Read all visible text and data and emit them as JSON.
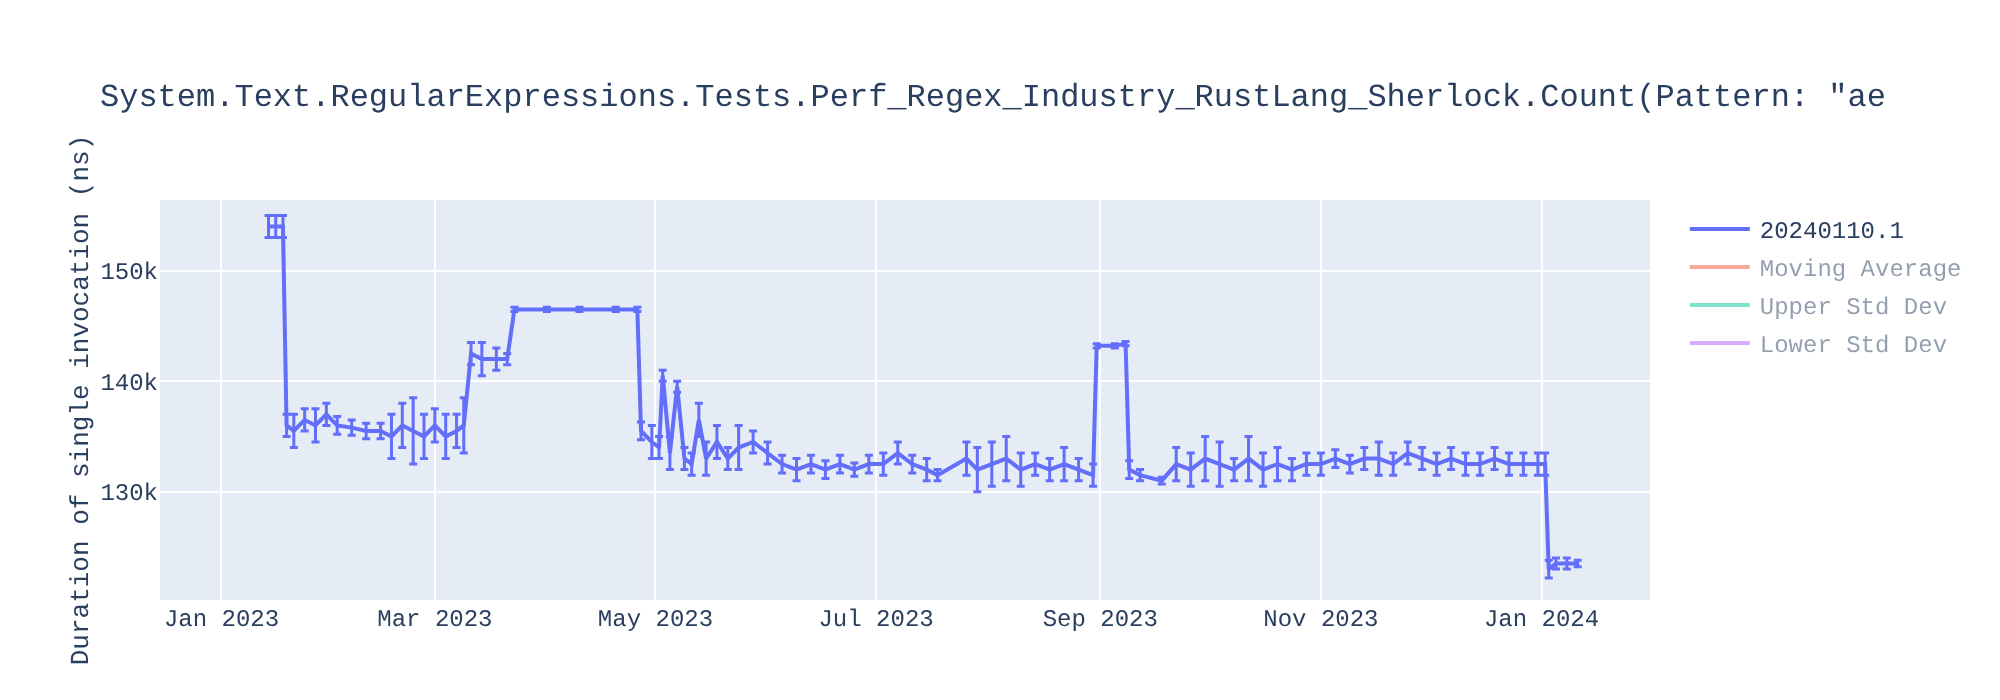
{
  "chart_data": {
    "type": "line",
    "title": "System.Text.RegularExpressions.Tests.Perf_Regex_Industry_RustLang_Sherlock.Count(Pattern: \"ae",
    "ylabel": "Duration of single invocation (ns)",
    "xlim": [
      "2022-12-15",
      "2024-01-31"
    ],
    "xticks": [
      {
        "value": "2023-01-01",
        "label": "Jan 2023"
      },
      {
        "value": "2023-03-01",
        "label": "Mar 2023"
      },
      {
        "value": "2023-05-01",
        "label": "May 2023"
      },
      {
        "value": "2023-07-01",
        "label": "Jul 2023"
      },
      {
        "value": "2023-09-01",
        "label": "Sep 2023"
      },
      {
        "value": "2023-11-01",
        "label": "Nov 2023"
      },
      {
        "value": "2024-01-01",
        "label": "Jan 2024"
      }
    ],
    "ylim": [
      120200,
      156400
    ],
    "yticks": [
      {
        "value": 130000,
        "label": "130k"
      },
      {
        "value": 140000,
        "label": "140k"
      },
      {
        "value": 150000,
        "label": "150k"
      }
    ],
    "grid": true,
    "legend": "top right",
    "line_style": "solid",
    "series": [
      {
        "name": "20240110.1",
        "color": "#636efa",
        "x": [
          "2023-01-14",
          "2023-01-16",
          "2023-01-18",
          "2023-01-19",
          "2023-01-21",
          "2023-01-24",
          "2023-01-27",
          "2023-01-30",
          "2023-02-02",
          "2023-02-06",
          "2023-02-10",
          "2023-02-14",
          "2023-02-17",
          "2023-02-20",
          "2023-02-23",
          "2023-02-26",
          "2023-03-01",
          "2023-03-04",
          "2023-03-07",
          "2023-03-09",
          "2023-03-11",
          "2023-03-14",
          "2023-03-18",
          "2023-03-21",
          "2023-03-23",
          "2023-04-01",
          "2023-04-10",
          "2023-04-20",
          "2023-04-26",
          "2023-04-27",
          "2023-04-30",
          "2023-05-02",
          "2023-05-03",
          "2023-05-05",
          "2023-05-07",
          "2023-05-09",
          "2023-05-11",
          "2023-05-13",
          "2023-05-15",
          "2023-05-18",
          "2023-05-21",
          "2023-05-24",
          "2023-05-28",
          "2023-06-01",
          "2023-06-05",
          "2023-06-09",
          "2023-06-13",
          "2023-06-17",
          "2023-06-21",
          "2023-06-25",
          "2023-06-29",
          "2023-07-03",
          "2023-07-07",
          "2023-07-11",
          "2023-07-15",
          "2023-07-18",
          "2023-07-26",
          "2023-07-29",
          "2023-08-02",
          "2023-08-06",
          "2023-08-10",
          "2023-08-14",
          "2023-08-18",
          "2023-08-22",
          "2023-08-26",
          "2023-08-30",
          "2023-08-31",
          "2023-09-05",
          "2023-09-08",
          "2023-09-09",
          "2023-09-12",
          "2023-09-18",
          "2023-09-22",
          "2023-09-26",
          "2023-09-30",
          "2023-10-04",
          "2023-10-08",
          "2023-10-12",
          "2023-10-16",
          "2023-10-20",
          "2023-10-24",
          "2023-10-28",
          "2023-11-01",
          "2023-11-05",
          "2023-11-09",
          "2023-11-13",
          "2023-11-17",
          "2023-11-21",
          "2023-11-25",
          "2023-11-29",
          "2023-12-03",
          "2023-12-07",
          "2023-12-11",
          "2023-12-15",
          "2023-12-19",
          "2023-12-23",
          "2023-12-27",
          "2023-12-31",
          "2024-01-02",
          "2024-01-03",
          "2024-01-05",
          "2024-01-08",
          "2024-01-11"
        ],
        "values": [
          154000,
          154000,
          154000,
          136000,
          135500,
          136500,
          136000,
          137000,
          136000,
          135800,
          135500,
          135500,
          135000,
          136000,
          135500,
          135000,
          136000,
          135000,
          135500,
          136000,
          142500,
          142000,
          142000,
          142000,
          146500,
          146500,
          146500,
          146500,
          146500,
          135500,
          134500,
          134000,
          140500,
          133500,
          139500,
          133000,
          132500,
          136500,
          133000,
          134500,
          133000,
          134000,
          134500,
          133500,
          132500,
          132000,
          132500,
          132000,
          132500,
          132000,
          132500,
          132500,
          133500,
          132500,
          132000,
          131500,
          133000,
          132000,
          132500,
          133000,
          132000,
          132500,
          132000,
          132500,
          132000,
          131500,
          143200,
          143200,
          143400,
          132000,
          131500,
          131000,
          132500,
          132000,
          133000,
          132500,
          132000,
          133000,
          132000,
          132500,
          132000,
          132500,
          132500,
          133000,
          132500,
          133000,
          133000,
          132500,
          133500,
          133000,
          132500,
          133000,
          132500,
          132500,
          133000,
          132500,
          132500,
          132500,
          132500,
          123000,
          123500,
          123500,
          123500
        ],
        "errors": [
          1000,
          1000,
          1000,
          1000,
          1500,
          1000,
          1500,
          1000,
          800,
          700,
          700,
          700,
          2000,
          2000,
          3000,
          2000,
          1500,
          2000,
          1500,
          2500,
          1000,
          1500,
          1000,
          500,
          200,
          200,
          200,
          200,
          200,
          800,
          1500,
          1000,
          500,
          1500,
          500,
          1000,
          1000,
          1500,
          1500,
          1500,
          1000,
          2000,
          1000,
          1000,
          800,
          1000,
          800,
          800,
          800,
          600,
          800,
          1000,
          1000,
          800,
          1000,
          500,
          1500,
          2000,
          2000,
          2000,
          1500,
          1000,
          1000,
          1500,
          1000,
          1000,
          200,
          200,
          200,
          800,
          500,
          300,
          1500,
          1500,
          2000,
          2000,
          1000,
          2000,
          1500,
          1500,
          1000,
          1000,
          1000,
          800,
          800,
          1000,
          1500,
          1000,
          1000,
          1000,
          1000,
          1000,
          1000,
          1000,
          1000,
          1000,
          1000,
          1000,
          1000,
          800,
          500,
          500,
          300
        ]
      },
      {
        "name": "Moving Average",
        "color": "#ef553b"
      },
      {
        "name": "Upper Std Dev",
        "color": "#00cc96"
      },
      {
        "name": "Lower Std Dev",
        "color": "#ab63fa"
      }
    ]
  }
}
